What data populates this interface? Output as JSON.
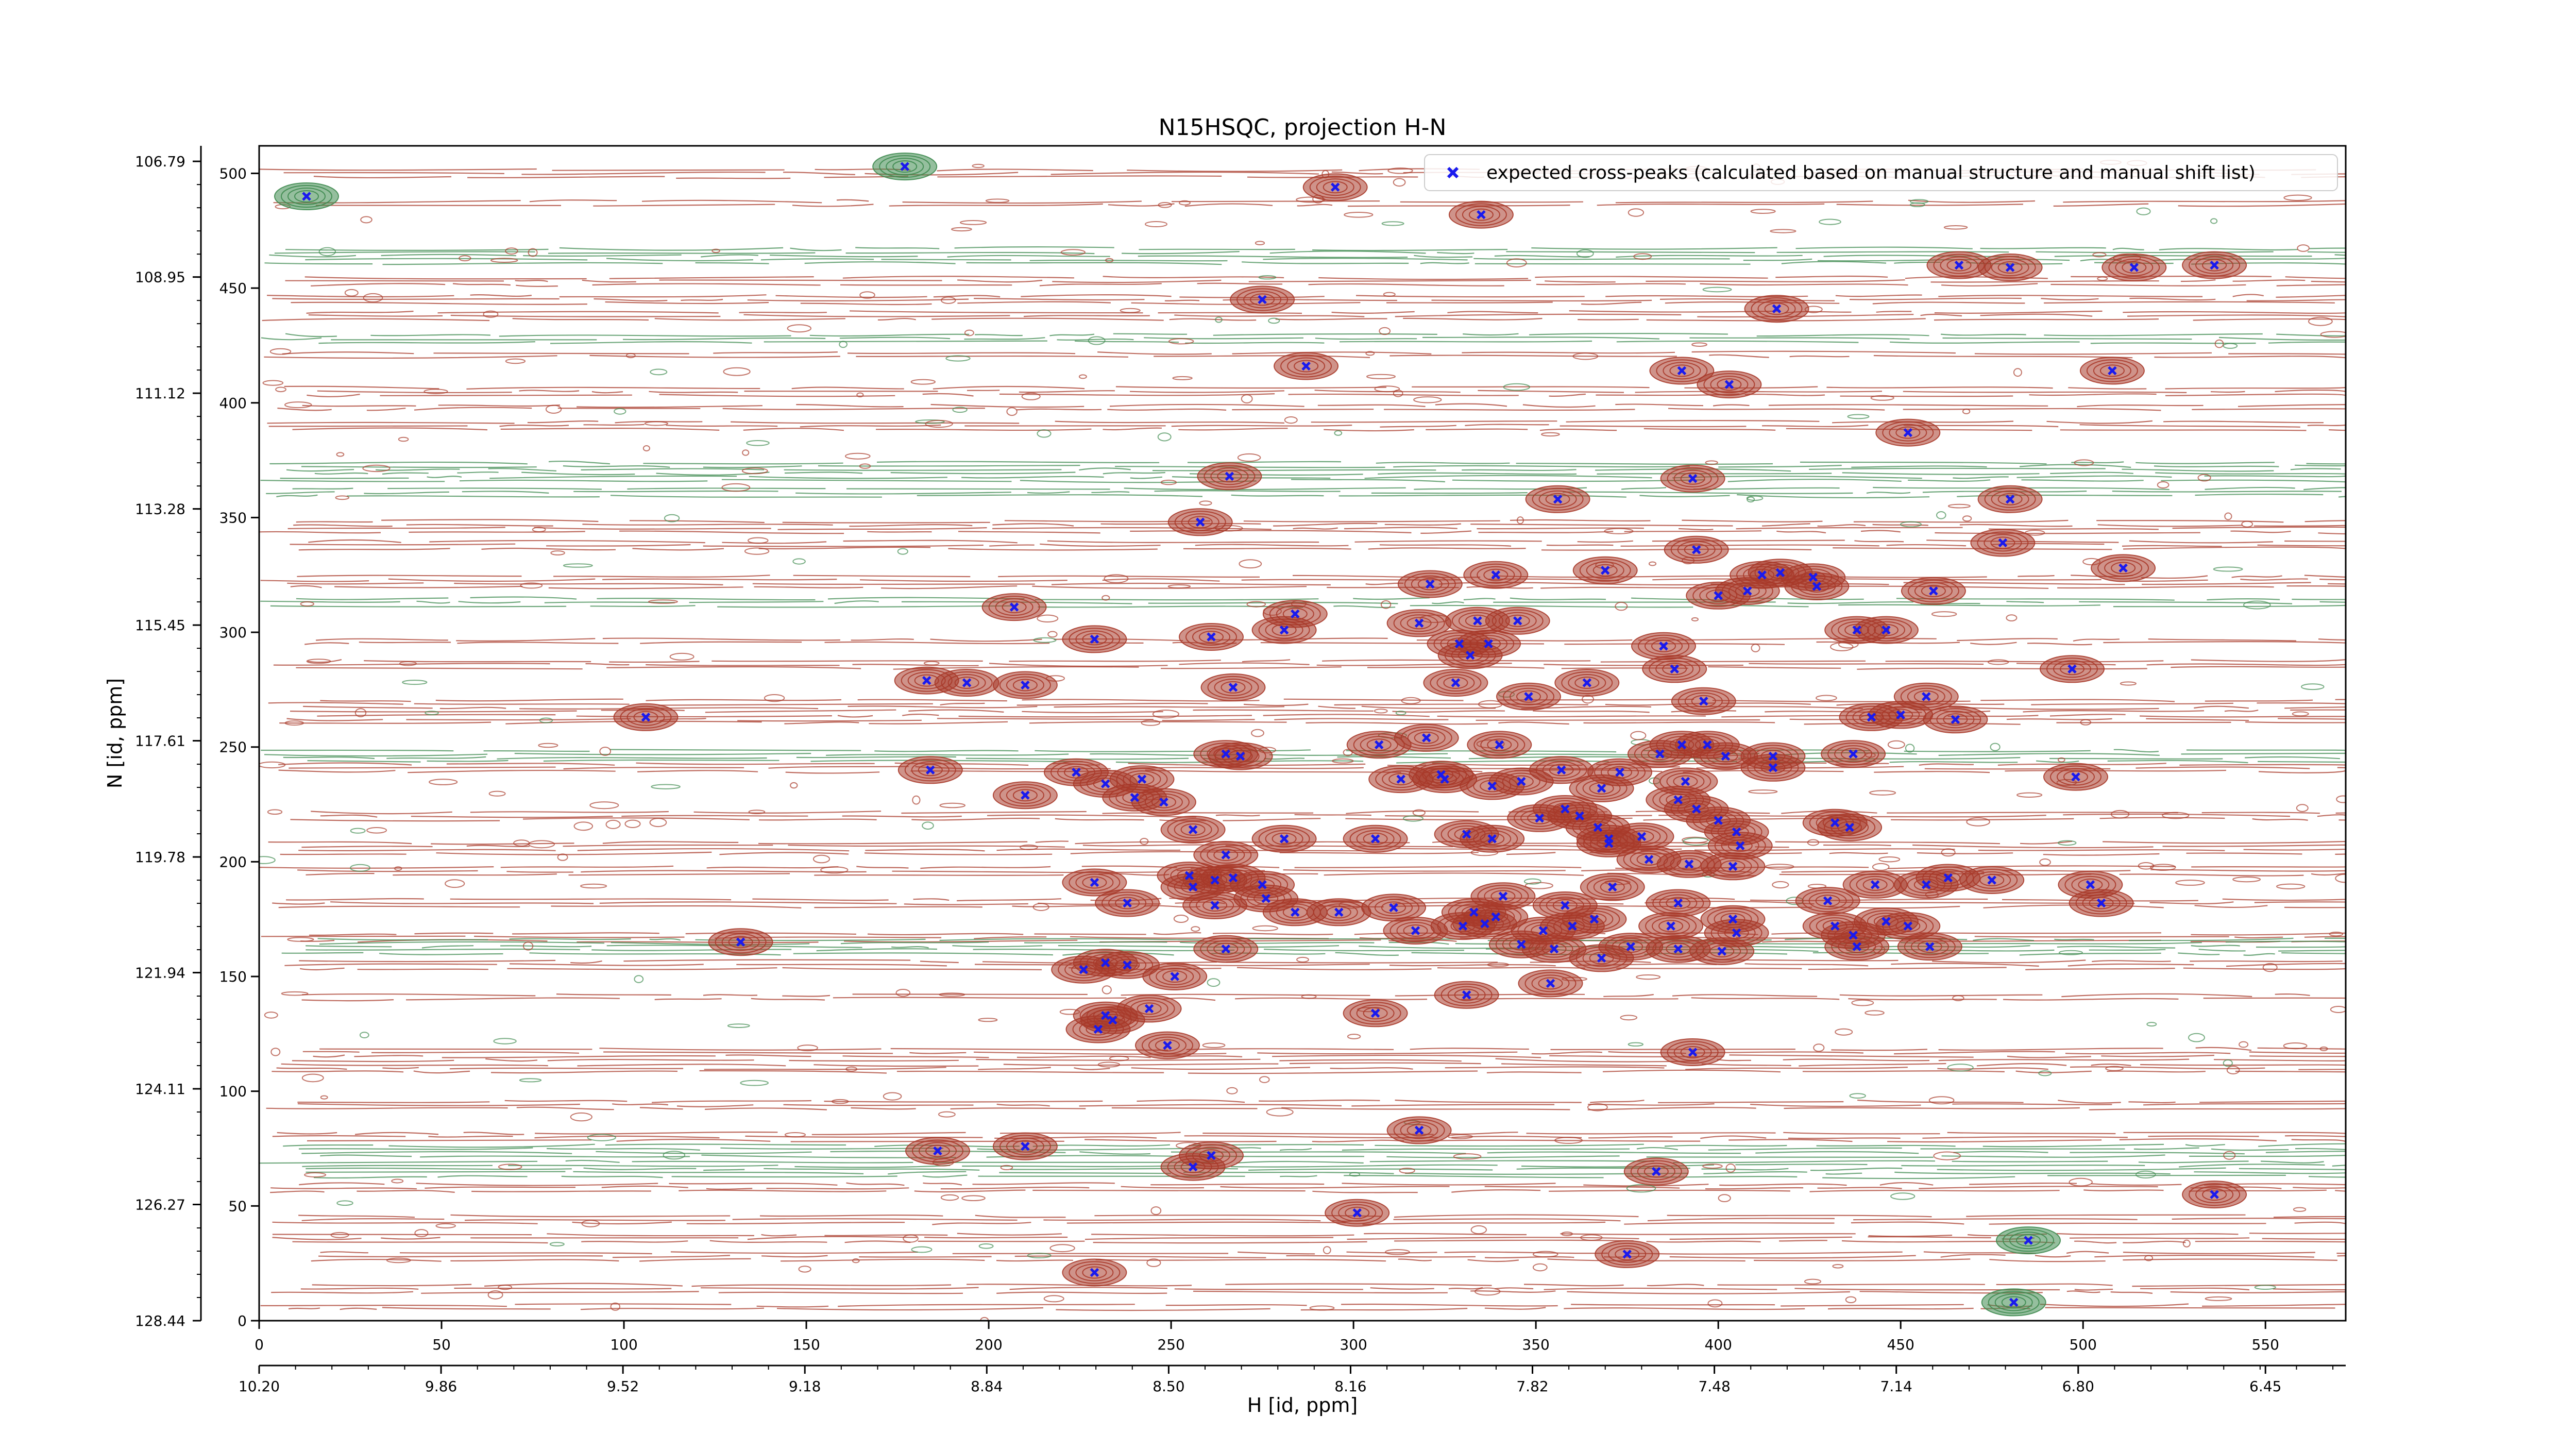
{
  "chart_data": {
    "type": "scatter",
    "title": "N15HSQC, projection H-N",
    "xlabel": "H [id, ppm]",
    "ylabel": "N [id, ppm]",
    "x_index_range": [
      0,
      572
    ],
    "y_index_range": [
      0,
      512
    ],
    "x_ppm_range": [
      10.2,
      6.3
    ],
    "y_ppm_range": [
      128.44,
      106.5
    ],
    "x_index_ticks": [
      "0",
      "50",
      "100",
      "150",
      "200",
      "250",
      "300",
      "350",
      "400",
      "450",
      "500",
      "550"
    ],
    "x_ppm_ticks": [
      "10.20",
      "9.86",
      "9.52",
      "9.18",
      "8.84",
      "8.50",
      "8.16",
      "7.82",
      "7.48",
      "7.14",
      "6.80",
      "6.45"
    ],
    "y_index_ticks": [
      "0",
      "50",
      "100",
      "150",
      "200",
      "250",
      "300",
      "350",
      "400",
      "450",
      "500"
    ],
    "y_ppm_ticks": [
      "128.44",
      "126.27",
      "124.11",
      "121.94",
      "119.78",
      "117.61",
      "115.45",
      "113.28",
      "111.12",
      "108.95",
      "106.79"
    ],
    "legend": {
      "label": "expected cross-peaks (calculated based on manual structure and manual shift list)",
      "placement": "top-right"
    },
    "colors": {
      "positive_contour": "#a83a2a",
      "negative_contour": "#3e8a4f",
      "marker": "#1a1aee"
    },
    "series": [
      {
        "marker": "x",
        "points": [
          [
            13,
            490
          ],
          [
            177,
            503
          ],
          [
            295,
            494
          ],
          [
            335,
            482
          ],
          [
            466,
            460
          ],
          [
            480,
            459
          ],
          [
            514,
            459
          ],
          [
            536,
            460
          ],
          [
            275,
            445
          ],
          [
            416,
            441
          ],
          [
            287,
            416
          ],
          [
            390,
            414
          ],
          [
            403,
            408
          ],
          [
            508,
            414
          ],
          [
            452,
            387
          ],
          [
            393,
            367
          ],
          [
            266,
            368
          ],
          [
            356,
            358
          ],
          [
            480,
            358
          ],
          [
            258,
            348
          ],
          [
            478,
            339
          ],
          [
            394,
            336
          ],
          [
            369,
            327
          ],
          [
            511,
            328
          ],
          [
            339,
            325
          ],
          [
            412,
            325
          ],
          [
            426,
            324
          ],
          [
            417,
            326
          ],
          [
            321,
            321
          ],
          [
            408,
            318
          ],
          [
            400,
            316
          ],
          [
            427,
            320
          ],
          [
            459,
            318
          ],
          [
            207,
            311
          ],
          [
            284,
            308
          ],
          [
            318,
            304
          ],
          [
            334,
            305
          ],
          [
            281,
            301
          ],
          [
            261,
            298
          ],
          [
            345,
            305
          ],
          [
            229,
            297
          ],
          [
            438,
            301
          ],
          [
            446,
            301
          ],
          [
            385,
            294
          ],
          [
            329,
            295
          ],
          [
            332,
            290
          ],
          [
            337,
            295
          ],
          [
            497,
            284
          ],
          [
            388,
            284
          ],
          [
            183,
            279
          ],
          [
            194,
            278
          ],
          [
            210,
            277
          ],
          [
            267,
            276
          ],
          [
            328,
            278
          ],
          [
            364,
            278
          ],
          [
            348,
            272
          ],
          [
            457,
            272
          ],
          [
            396,
            270
          ],
          [
            450,
            264
          ],
          [
            465,
            262
          ],
          [
            442,
            263
          ],
          [
            106,
            263
          ],
          [
            397,
            251
          ],
          [
            307,
            251
          ],
          [
            265,
            247
          ],
          [
            390,
            251
          ],
          [
            340,
            251
          ],
          [
            320,
            254
          ],
          [
            402,
            246
          ],
          [
            415,
            246
          ],
          [
            437,
            247
          ],
          [
            384,
            247
          ],
          [
            269,
            246
          ],
          [
            184,
            240
          ],
          [
            224,
            239
          ],
          [
            324,
            238
          ],
          [
            373,
            239
          ],
          [
            357,
            240
          ],
          [
            242,
            236
          ],
          [
            346,
            235
          ],
          [
            338,
            233
          ],
          [
            325,
            236
          ],
          [
            313,
            236
          ],
          [
            232,
            234
          ],
          [
            210,
            229
          ],
          [
            240,
            228
          ],
          [
            368,
            232
          ],
          [
            391,
            235
          ],
          [
            415,
            241
          ],
          [
            498,
            237
          ],
          [
            248,
            226
          ],
          [
            389,
            227
          ],
          [
            394,
            223
          ],
          [
            362,
            220
          ],
          [
            358,
            223
          ],
          [
            400,
            218
          ],
          [
            432,
            217
          ],
          [
            436,
            215
          ],
          [
            405,
            213
          ],
          [
            406,
            207
          ],
          [
            331,
            212
          ],
          [
            338,
            210
          ],
          [
            306,
            210
          ],
          [
            256,
            214
          ],
          [
            265,
            203
          ],
          [
            367,
            215
          ],
          [
            379,
            211
          ],
          [
            351,
            219
          ],
          [
            281,
            210
          ],
          [
            370,
            210
          ],
          [
            381,
            201
          ],
          [
            392,
            199
          ],
          [
            404,
            198
          ],
          [
            262,
            192
          ],
          [
            267,
            193
          ],
          [
            229,
            191
          ],
          [
            255,
            194
          ],
          [
            256,
            189
          ],
          [
            275,
            190
          ],
          [
            276,
            184
          ],
          [
            370,
            208
          ],
          [
            341,
            185
          ],
          [
            358,
            181
          ],
          [
            371,
            189
          ],
          [
            238,
            182
          ],
          [
            262,
            181
          ],
          [
            360,
            172
          ],
          [
            389,
            182
          ],
          [
            430,
            183
          ],
          [
            443,
            190
          ],
          [
            502,
            190
          ],
          [
            457,
            190
          ],
          [
            463,
            193
          ],
          [
            475,
            192
          ],
          [
            505,
            182
          ],
          [
            284,
            178
          ],
          [
            339,
            176
          ],
          [
            296,
            178
          ],
          [
            404,
            175
          ],
          [
            446,
            174
          ],
          [
            432,
            172
          ],
          [
            366,
            175
          ],
          [
            311,
            180
          ],
          [
            336,
            173
          ],
          [
            317,
            170
          ],
          [
            330,
            172
          ],
          [
            352,
            170
          ],
          [
            333,
            178
          ],
          [
            387,
            172
          ],
          [
            405,
            169
          ],
          [
            437,
            168
          ],
          [
            452,
            172
          ],
          [
            458,
            163
          ],
          [
            438,
            163
          ],
          [
            376,
            163
          ],
          [
            355,
            162
          ],
          [
            346,
            164
          ],
          [
            368,
            158
          ],
          [
            389,
            162
          ],
          [
            401,
            161
          ],
          [
            132,
            165
          ],
          [
            265,
            162
          ],
          [
            226,
            153
          ],
          [
            232,
            156
          ],
          [
            238,
            155
          ],
          [
            251,
            150
          ],
          [
            354,
            147
          ],
          [
            331,
            142
          ],
          [
            306,
            134
          ],
          [
            244,
            136
          ],
          [
            234,
            131
          ],
          [
            230,
            127
          ],
          [
            232,
            133
          ],
          [
            249,
            120
          ],
          [
            393,
            117
          ],
          [
            318,
            83
          ],
          [
            186,
            74
          ],
          [
            210,
            76
          ],
          [
            261,
            72
          ],
          [
            256,
            67
          ],
          [
            383,
            65
          ],
          [
            536,
            55
          ],
          [
            301,
            47
          ],
          [
            375,
            29
          ],
          [
            485,
            35
          ],
          [
            481,
            8
          ],
          [
            229,
            21
          ]
        ]
      }
    ]
  }
}
